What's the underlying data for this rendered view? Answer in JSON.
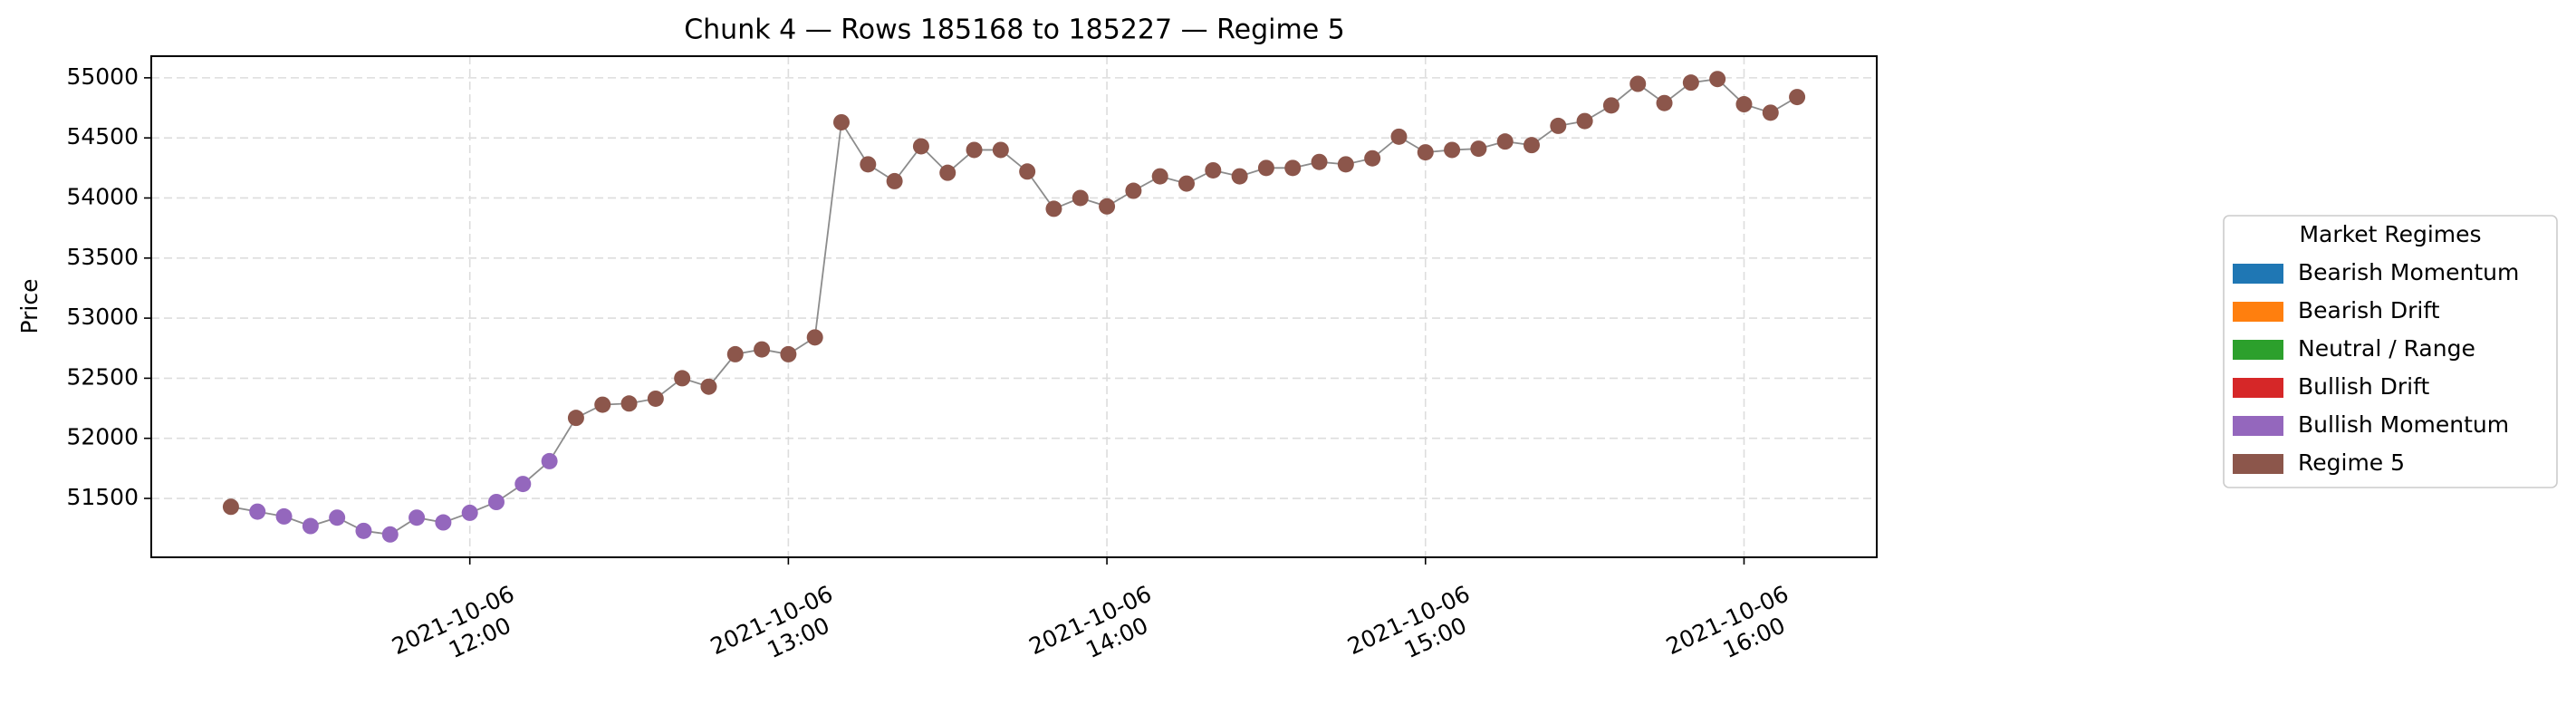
{
  "chart_data": {
    "type": "line",
    "title": "Chunk 4 — Rows 185168 to 185227 — Regime 5",
    "y_label": "Price",
    "x": [
      "2021-10-06 11:15",
      "2021-10-06 11:20",
      "2021-10-06 11:25",
      "2021-10-06 11:30",
      "2021-10-06 11:35",
      "2021-10-06 11:40",
      "2021-10-06 11:45",
      "2021-10-06 11:50",
      "2021-10-06 11:55",
      "2021-10-06 12:00",
      "2021-10-06 12:05",
      "2021-10-06 12:10",
      "2021-10-06 12:15",
      "2021-10-06 12:20",
      "2021-10-06 12:25",
      "2021-10-06 12:30",
      "2021-10-06 12:35",
      "2021-10-06 12:40",
      "2021-10-06 12:45",
      "2021-10-06 12:50",
      "2021-10-06 12:55",
      "2021-10-06 13:00",
      "2021-10-06 13:05",
      "2021-10-06 13:10",
      "2021-10-06 13:15",
      "2021-10-06 13:20",
      "2021-10-06 13:25",
      "2021-10-06 13:30",
      "2021-10-06 13:35",
      "2021-10-06 13:40",
      "2021-10-06 13:45",
      "2021-10-06 13:50",
      "2021-10-06 13:55",
      "2021-10-06 14:00",
      "2021-10-06 14:05",
      "2021-10-06 14:10",
      "2021-10-06 14:15",
      "2021-10-06 14:20",
      "2021-10-06 14:25",
      "2021-10-06 14:30",
      "2021-10-06 14:35",
      "2021-10-06 14:40",
      "2021-10-06 14:45",
      "2021-10-06 14:50",
      "2021-10-06 14:55",
      "2021-10-06 15:00",
      "2021-10-06 15:05",
      "2021-10-06 15:10",
      "2021-10-06 15:15",
      "2021-10-06 15:20",
      "2021-10-06 15:25",
      "2021-10-06 15:30",
      "2021-10-06 15:35",
      "2021-10-06 15:40",
      "2021-10-06 15:45",
      "2021-10-06 15:50",
      "2021-10-06 15:55",
      "2021-10-06 16:00",
      "2021-10-06 16:05",
      "2021-10-06 16:10"
    ],
    "values": [
      51430,
      51390,
      51350,
      51270,
      51340,
      51230,
      51200,
      51340,
      51300,
      51380,
      51470,
      51620,
      51810,
      52170,
      52280,
      52290,
      52330,
      52500,
      52430,
      52700,
      52740,
      52700,
      52840,
      54630,
      54280,
      54140,
      54430,
      54210,
      54400,
      54400,
      54220,
      53910,
      54000,
      53930,
      54060,
      54180,
      54120,
      54230,
      54180,
      54250,
      54250,
      54300,
      54280,
      54330,
      54510,
      54380,
      54400,
      54410,
      54470,
      54440,
      54600,
      54640,
      54770,
      54950,
      54790,
      54960,
      54990,
      54780,
      54710,
      54840
    ],
    "regimes": [
      "Regime 5",
      "Bullish Momentum",
      "Bullish Momentum",
      "Bullish Momentum",
      "Bullish Momentum",
      "Bullish Momentum",
      "Bullish Momentum",
      "Bullish Momentum",
      "Bullish Momentum",
      "Bullish Momentum",
      "Bullish Momentum",
      "Bullish Momentum",
      "Bullish Momentum",
      "Regime 5",
      "Regime 5",
      "Regime 5",
      "Regime 5",
      "Regime 5",
      "Regime 5",
      "Regime 5",
      "Regime 5",
      "Regime 5",
      "Regime 5",
      "Regime 5",
      "Regime 5",
      "Regime 5",
      "Regime 5",
      "Regime 5",
      "Regime 5",
      "Regime 5",
      "Regime 5",
      "Regime 5",
      "Regime 5",
      "Regime 5",
      "Regime 5",
      "Regime 5",
      "Regime 5",
      "Regime 5",
      "Regime 5",
      "Regime 5",
      "Regime 5",
      "Regime 5",
      "Regime 5",
      "Regime 5",
      "Regime 5",
      "Regime 5",
      "Regime 5",
      "Regime 5",
      "Regime 5",
      "Regime 5",
      "Regime 5",
      "Regime 5",
      "Regime 5",
      "Regime 5",
      "Regime 5",
      "Regime 5",
      "Regime 5",
      "Regime 5",
      "Regime 5",
      "Regime 5"
    ],
    "line_color": "#8c8c8c",
    "xlim": [
      "2021-10-06 11:00",
      "2021-10-06 16:25"
    ],
    "xticks": [
      "2021-10-06 12:00",
      "2021-10-06 13:00",
      "2021-10-06 14:00",
      "2021-10-06 15:00",
      "2021-10-06 16:00"
    ],
    "ylim": [
      51010,
      55180
    ],
    "yticks": [
      51500,
      52000,
      52500,
      53000,
      53500,
      54000,
      54500,
      55000
    ],
    "grid": true,
    "legend_title": "Market Regimes",
    "legend": [
      {
        "name": "Bearish Momentum",
        "color": "#1f77b4"
      },
      {
        "name": "Bearish Drift",
        "color": "#ff7f0e"
      },
      {
        "name": "Neutral / Range",
        "color": "#2ca02c"
      },
      {
        "name": "Bullish Drift",
        "color": "#d62728"
      },
      {
        "name": "Bullish Momentum",
        "color": "#9467bd"
      },
      {
        "name": "Regime 5",
        "color": "#8c564b"
      }
    ],
    "legend_position": "right"
  }
}
